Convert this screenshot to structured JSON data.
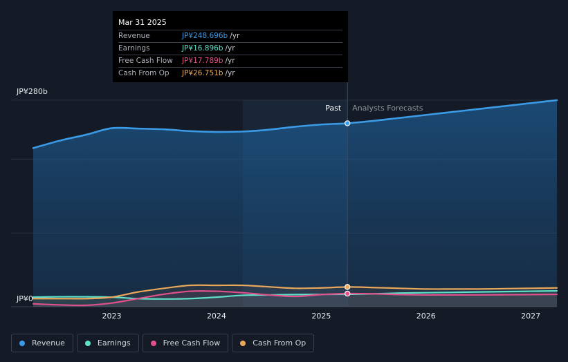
{
  "tooltip": {
    "date": "Mar 31 2025",
    "rows": [
      {
        "label": "Revenue",
        "value": "JP¥248.696b",
        "unit": "/yr",
        "color": "#3b9be6"
      },
      {
        "label": "Earnings",
        "value": "JP¥16.896b",
        "unit": "/yr",
        "color": "#5ee0c9"
      },
      {
        "label": "Free Cash Flow",
        "value": "JP¥17.789b",
        "unit": "/yr",
        "color": "#e0508a"
      },
      {
        "label": "Cash From Op",
        "value": "JP¥26.751b",
        "unit": "/yr",
        "color": "#e9a85a"
      }
    ]
  },
  "legend": [
    {
      "label": "Revenue",
      "color": "#3b9be6"
    },
    {
      "label": "Earnings",
      "color": "#5ee0c9"
    },
    {
      "label": "Free Cash Flow",
      "color": "#e0508a"
    },
    {
      "label": "Cash From Op",
      "color": "#e9a85a"
    }
  ],
  "chart_data": {
    "type": "line",
    "y_top_label": "JP¥280b",
    "y_bottom_label": "JP¥0",
    "ylim": [
      0,
      280
    ],
    "xlim": [
      2022.2,
      2027.25
    ],
    "x_ticks": [
      {
        "value": 2023,
        "label": "2023"
      },
      {
        "value": 2024,
        "label": "2024"
      },
      {
        "value": 2025,
        "label": "2025"
      },
      {
        "value": 2026,
        "label": "2026"
      },
      {
        "value": 2027,
        "label": "2027"
      }
    ],
    "past_label": "Past",
    "forecast_label": "Analysts Forecasts",
    "past_end_x": 2025.25,
    "highlight_start_x": 2024.25,
    "series": [
      {
        "name": "Revenue",
        "color": "#3b9be6",
        "fill": true,
        "points": [
          [
            2022.25,
            215
          ],
          [
            2022.5,
            225
          ],
          [
            2022.75,
            233
          ],
          [
            2023.0,
            242
          ],
          [
            2023.25,
            241.5
          ],
          [
            2023.5,
            240.5
          ],
          [
            2023.75,
            238
          ],
          [
            2024.0,
            237
          ],
          [
            2024.25,
            237.5
          ],
          [
            2024.5,
            240
          ],
          [
            2024.75,
            244
          ],
          [
            2025.0,
            247
          ],
          [
            2025.25,
            248.7
          ],
          [
            2025.5,
            252
          ],
          [
            2025.75,
            256
          ],
          [
            2026.0,
            260
          ],
          [
            2026.25,
            264
          ],
          [
            2026.5,
            268
          ],
          [
            2026.75,
            272
          ],
          [
            2027.0,
            276
          ],
          [
            2027.25,
            280
          ]
        ]
      },
      {
        "name": "Earnings",
        "color": "#5ee0c9",
        "points": [
          [
            2022.25,
            13
          ],
          [
            2022.5,
            13.5
          ],
          [
            2022.75,
            13.5
          ],
          [
            2023.0,
            13
          ],
          [
            2023.25,
            11
          ],
          [
            2023.5,
            10.5
          ],
          [
            2023.75,
            11
          ],
          [
            2024.0,
            13
          ],
          [
            2024.25,
            15.5
          ],
          [
            2024.5,
            16
          ],
          [
            2024.75,
            16.5
          ],
          [
            2025.0,
            16.8
          ],
          [
            2025.25,
            16.9
          ],
          [
            2025.5,
            17.5
          ],
          [
            2025.75,
            18.5
          ],
          [
            2026.0,
            19
          ],
          [
            2026.25,
            19.5
          ],
          [
            2026.5,
            20
          ],
          [
            2026.75,
            20.5
          ],
          [
            2027.0,
            21
          ],
          [
            2027.25,
            21.5
          ]
        ]
      },
      {
        "name": "Free Cash Flow",
        "color": "#e0508a",
        "points": [
          [
            2022.25,
            4
          ],
          [
            2022.5,
            2.5
          ],
          [
            2022.75,
            2
          ],
          [
            2023.0,
            5
          ],
          [
            2023.25,
            11
          ],
          [
            2023.5,
            17
          ],
          [
            2023.75,
            21
          ],
          [
            2024.0,
            21
          ],
          [
            2024.25,
            19
          ],
          [
            2024.5,
            16
          ],
          [
            2024.75,
            14
          ],
          [
            2025.0,
            16.5
          ],
          [
            2025.25,
            17.8
          ],
          [
            2025.5,
            17.5
          ],
          [
            2025.75,
            16.5
          ],
          [
            2026.0,
            16
          ],
          [
            2026.25,
            16
          ],
          [
            2026.5,
            16
          ],
          [
            2026.75,
            16.2
          ],
          [
            2027.0,
            16.5
          ],
          [
            2027.25,
            16.8
          ]
        ]
      },
      {
        "name": "Cash From Op",
        "color": "#e9a85a",
        "points": [
          [
            2022.25,
            11
          ],
          [
            2022.5,
            11
          ],
          [
            2022.75,
            11
          ],
          [
            2023.0,
            13
          ],
          [
            2023.25,
            20
          ],
          [
            2023.5,
            25
          ],
          [
            2023.75,
            29
          ],
          [
            2024.0,
            29
          ],
          [
            2024.25,
            29
          ],
          [
            2024.5,
            27
          ],
          [
            2024.75,
            25
          ],
          [
            2025.0,
            25.5
          ],
          [
            2025.25,
            26.8
          ],
          [
            2025.5,
            26
          ],
          [
            2025.75,
            25
          ],
          [
            2026.0,
            24
          ],
          [
            2026.25,
            24
          ],
          [
            2026.5,
            24
          ],
          [
            2026.75,
            24.5
          ],
          [
            2027.0,
            25
          ],
          [
            2027.25,
            25.5
          ]
        ]
      }
    ]
  }
}
